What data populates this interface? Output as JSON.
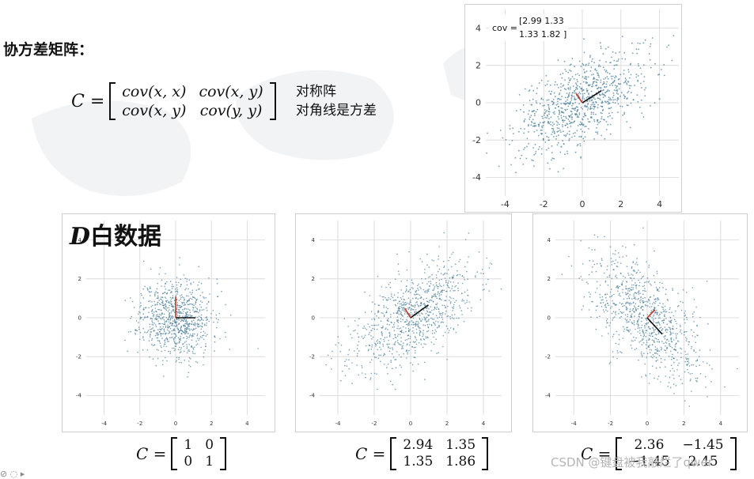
{
  "title": "协方差矩阵：",
  "cov_matrix": {
    "lhs": "C =",
    "cells": [
      "cov(x, x)",
      "cov(x, y)",
      "cov(x, y)",
      "cov(y, y)"
    ]
  },
  "notes": [
    "对称阵",
    "对角线是方差"
  ],
  "watermark": "CSDN @键盘被我敲烂了qwer",
  "colors": {
    "point": "#4a7f9a",
    "red_axis": "#c0392b",
    "black_axis": "#111111",
    "grid": "#d5d5d5"
  },
  "chart_data": [
    {
      "type": "scatter",
      "id": "top",
      "title": "",
      "xlim": [
        -5,
        5
      ],
      "ylim": [
        -5,
        5
      ],
      "xticks": [
        "-4",
        "-2",
        "0",
        "2",
        "4"
      ],
      "yticks": [
        "4",
        "2",
        "0",
        "-2",
        "-4"
      ],
      "grid": true,
      "n_points": 900,
      "cov": [
        [
          2.99,
          1.33
        ],
        [
          1.33,
          1.82
        ]
      ],
      "annotation": {
        "label": "cov =",
        "row1": [
          "2.99",
          "1.33"
        ],
        "row2": [
          "1.33",
          "1.82"
        ]
      }
    },
    {
      "type": "scatter",
      "id": "white",
      "title": "D白数据",
      "xlim": [
        -5,
        5
      ],
      "ylim": [
        -5,
        5
      ],
      "xticks": [
        "-4",
        "-2",
        "0",
        "2",
        "4"
      ],
      "yticks": [
        "4",
        "2",
        "0",
        "-2",
        "-4"
      ],
      "grid": true,
      "n_points": 900,
      "cov": [
        [
          1,
          0
        ],
        [
          0,
          1
        ]
      ],
      "caption": {
        "lhs": "C =",
        "cells": [
          "1",
          "0",
          "0",
          "1"
        ]
      }
    },
    {
      "type": "scatter",
      "id": "positive",
      "title": "",
      "xlim": [
        -5,
        5
      ],
      "ylim": [
        -5,
        5
      ],
      "xticks": [
        "-4",
        "-2",
        "0",
        "2",
        "4"
      ],
      "yticks": [
        "4",
        "2",
        "0",
        "-2",
        "-4"
      ],
      "grid": true,
      "n_points": 900,
      "cov": [
        [
          2.94,
          1.35
        ],
        [
          1.35,
          1.86
        ]
      ],
      "caption": {
        "lhs": "C =",
        "cells": [
          "2.94",
          "1.35",
          "1.35",
          "1.86"
        ]
      }
    },
    {
      "type": "scatter",
      "id": "negative",
      "title": "",
      "xlim": [
        -5,
        5
      ],
      "ylim": [
        -5,
        5
      ],
      "xticks": [
        "-4",
        "-2",
        "0",
        "2",
        "4"
      ],
      "yticks": [
        "4",
        "2",
        "0",
        "-2",
        "-4"
      ],
      "grid": true,
      "n_points": 900,
      "cov": [
        [
          2.36,
          -1.45
        ],
        [
          -1.45,
          2.45
        ]
      ],
      "caption": {
        "lhs": "C =",
        "cells": [
          "2.36",
          "−1.45",
          "−1.45",
          "2.45"
        ]
      }
    }
  ]
}
